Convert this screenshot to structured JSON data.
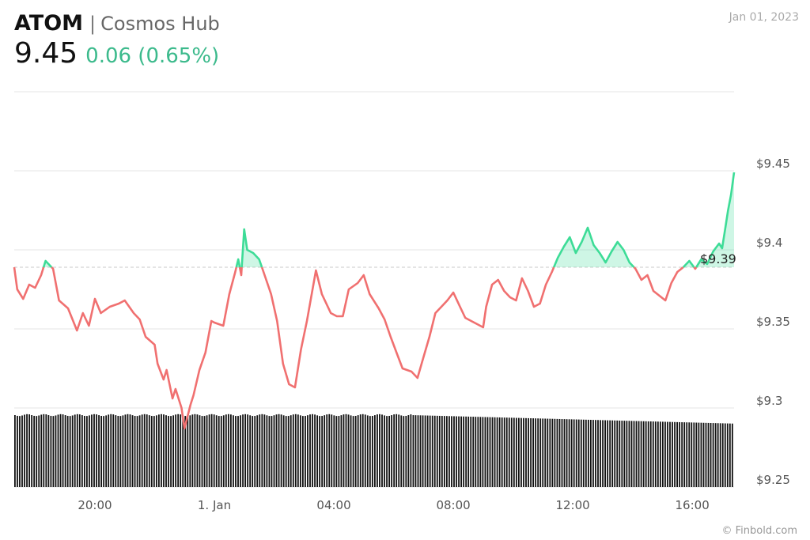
{
  "header": {
    "ticker": "ATOM",
    "separator": "|",
    "name": "Cosmos Hub",
    "price": "9.45",
    "change": "0.06 (0.65%)",
    "date": "Jan 01, 2023"
  },
  "credit": "© Finbold.com",
  "colors": {
    "up": "#3ddc97",
    "down": "#f07070",
    "change_text": "#3cba8c",
    "grid": "#e6e6e6",
    "volume": "#111111"
  },
  "chart_data": {
    "type": "line",
    "y_ticks": [
      "9.45",
      "9.4",
      "9.35",
      "9.3",
      "9.25"
    ],
    "y_tick_values": [
      9.45,
      9.4,
      9.35,
      9.3,
      9.25
    ],
    "ylim": [
      9.25,
      9.5
    ],
    "x_ticks": [
      "20:00",
      "1. Jan",
      "04:00",
      "08:00",
      "12:00",
      "16:00"
    ],
    "x_tick_hours": [
      20,
      24,
      28,
      32,
      36,
      40
    ],
    "xlim_hours": [
      17.3,
      41.4
    ],
    "reference": {
      "value": 9.389,
      "label": "$9.39"
    },
    "price_series": [
      [
        17.3,
        9.389
      ],
      [
        17.4,
        9.375
      ],
      [
        17.6,
        9.369
      ],
      [
        17.8,
        9.378
      ],
      [
        18.0,
        9.376
      ],
      [
        18.2,
        9.384
      ],
      [
        18.35,
        9.393
      ],
      [
        18.6,
        9.388
      ],
      [
        18.8,
        9.368
      ],
      [
        19.1,
        9.363
      ],
      [
        19.4,
        9.349
      ],
      [
        19.6,
        9.36
      ],
      [
        19.8,
        9.352
      ],
      [
        20.0,
        9.369
      ],
      [
        20.2,
        9.36
      ],
      [
        20.5,
        9.364
      ],
      [
        20.8,
        9.366
      ],
      [
        21.0,
        9.368
      ],
      [
        21.3,
        9.36
      ],
      [
        21.5,
        9.356
      ],
      [
        21.7,
        9.345
      ],
      [
        22.0,
        9.34
      ],
      [
        22.1,
        9.328
      ],
      [
        22.3,
        9.318
      ],
      [
        22.4,
        9.324
      ],
      [
        22.6,
        9.306
      ],
      [
        22.7,
        9.312
      ],
      [
        22.9,
        9.3
      ],
      [
        23.0,
        9.287
      ],
      [
        23.2,
        9.302
      ],
      [
        23.3,
        9.308
      ],
      [
        23.5,
        9.324
      ],
      [
        23.7,
        9.335
      ],
      [
        23.9,
        9.355
      ],
      [
        24.0,
        9.354
      ],
      [
        24.3,
        9.352
      ],
      [
        24.5,
        9.372
      ],
      [
        24.7,
        9.386
      ],
      [
        24.8,
        9.394
      ],
      [
        24.9,
        9.384
      ],
      [
        25.0,
        9.413
      ],
      [
        25.1,
        9.4
      ],
      [
        25.3,
        9.398
      ],
      [
        25.5,
        9.394
      ],
      [
        25.7,
        9.383
      ],
      [
        25.9,
        9.372
      ],
      [
        26.1,
        9.355
      ],
      [
        26.3,
        9.328
      ],
      [
        26.5,
        9.315
      ],
      [
        26.7,
        9.313
      ],
      [
        26.9,
        9.337
      ],
      [
        27.1,
        9.355
      ],
      [
        27.4,
        9.387
      ],
      [
        27.6,
        9.372
      ],
      [
        27.9,
        9.36
      ],
      [
        28.1,
        9.358
      ],
      [
        28.3,
        9.358
      ],
      [
        28.5,
        9.375
      ],
      [
        28.8,
        9.379
      ],
      [
        29.0,
        9.384
      ],
      [
        29.2,
        9.372
      ],
      [
        29.5,
        9.363
      ],
      [
        29.7,
        9.356
      ],
      [
        29.9,
        9.345
      ],
      [
        30.1,
        9.335
      ],
      [
        30.3,
        9.325
      ],
      [
        30.6,
        9.323
      ],
      [
        30.8,
        9.319
      ],
      [
        31.0,
        9.332
      ],
      [
        31.2,
        9.345
      ],
      [
        31.4,
        9.36
      ],
      [
        31.6,
        9.364
      ],
      [
        31.8,
        9.368
      ],
      [
        32.0,
        9.373
      ],
      [
        32.2,
        9.365
      ],
      [
        32.4,
        9.357
      ],
      [
        32.6,
        9.355
      ],
      [
        32.8,
        9.353
      ],
      [
        33.0,
        9.351
      ],
      [
        33.1,
        9.364
      ],
      [
        33.3,
        9.378
      ],
      [
        33.5,
        9.381
      ],
      [
        33.7,
        9.374
      ],
      [
        33.9,
        9.37
      ],
      [
        34.1,
        9.368
      ],
      [
        34.3,
        9.382
      ],
      [
        34.5,
        9.374
      ],
      [
        34.7,
        9.364
      ],
      [
        34.9,
        9.366
      ],
      [
        35.1,
        9.378
      ],
      [
        35.3,
        9.386
      ],
      [
        35.5,
        9.395
      ],
      [
        35.7,
        9.402
      ],
      [
        35.9,
        9.408
      ],
      [
        36.1,
        9.398
      ],
      [
        36.3,
        9.405
      ],
      [
        36.5,
        9.414
      ],
      [
        36.7,
        9.403
      ],
      [
        36.9,
        9.398
      ],
      [
        37.1,
        9.392
      ],
      [
        37.3,
        9.399
      ],
      [
        37.5,
        9.405
      ],
      [
        37.7,
        9.4
      ],
      [
        37.9,
        9.392
      ],
      [
        38.1,
        9.388
      ],
      [
        38.3,
        9.381
      ],
      [
        38.5,
        9.384
      ],
      [
        38.7,
        9.374
      ],
      [
        38.9,
        9.371
      ],
      [
        39.1,
        9.368
      ],
      [
        39.3,
        9.379
      ],
      [
        39.5,
        9.386
      ],
      [
        39.7,
        9.389
      ],
      [
        39.9,
        9.393
      ],
      [
        40.1,
        9.388
      ],
      [
        40.3,
        9.394
      ],
      [
        40.5,
        9.391
      ],
      [
        40.7,
        9.399
      ],
      [
        40.9,
        9.404
      ],
      [
        41.0,
        9.401
      ],
      [
        41.1,
        9.413
      ],
      [
        41.2,
        9.425
      ],
      [
        41.3,
        9.435
      ],
      [
        41.4,
        9.449
      ]
    ],
    "volume": {
      "description": "dense black volume bars along bottom of plot"
    }
  }
}
